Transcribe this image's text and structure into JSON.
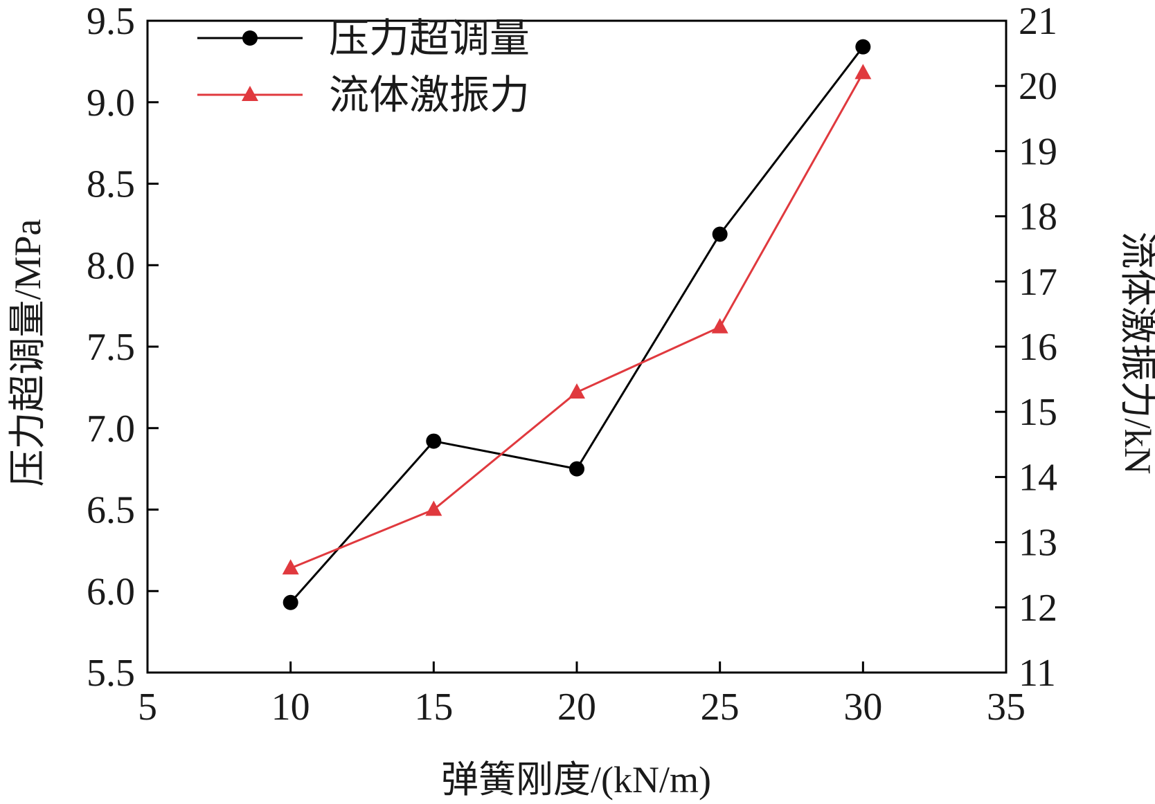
{
  "chart_data": {
    "type": "line",
    "xlabel": "弹簧刚度/(kN/m)",
    "ylabel_left": "压力超调量/MPa",
    "ylabel_right": "流体激振力/kN",
    "xlim": [
      5,
      35
    ],
    "xticks": [
      5,
      10,
      15,
      20,
      25,
      30,
      35
    ],
    "ylim_left": [
      5.5,
      9.5
    ],
    "yticks_left": [
      "5.5",
      "6.0",
      "6.5",
      "7.0",
      "7.5",
      "8.0",
      "8.5",
      "9.0",
      "9.5"
    ],
    "ylim_right": [
      11,
      21
    ],
    "yticks_right": [
      "11",
      "12",
      "13",
      "14",
      "15",
      "16",
      "17",
      "18",
      "19",
      "20",
      "21"
    ],
    "grid": false,
    "legend_position": "top-left",
    "x": [
      10,
      15,
      20,
      25,
      30
    ],
    "series": [
      {
        "name": "压力超调量",
        "axis": "left",
        "marker": "circle",
        "color": "#000000",
        "values": [
          5.93,
          6.92,
          6.75,
          8.19,
          9.34
        ]
      },
      {
        "name": "流体激振力",
        "axis": "right",
        "marker": "triangle",
        "color": "#e0393e",
        "values": [
          12.6,
          13.5,
          15.3,
          16.3,
          20.2
        ]
      }
    ]
  }
}
